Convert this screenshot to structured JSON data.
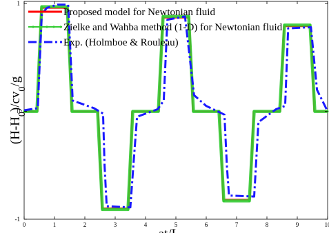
{
  "chart_data": {
    "type": "line",
    "title": "",
    "xlabel": "at/L",
    "ylabel": "(H-H0)/cv0/g",
    "xlim": [
      0,
      10
    ],
    "ylim": [
      -1,
      1.02
    ],
    "x_ticks": [
      "0",
      "1",
      "2",
      "3",
      "4",
      "5",
      "6",
      "7",
      "8",
      "9",
      "10"
    ],
    "y_ticks": [
      "1",
      "0",
      "-1"
    ],
    "y_tick_values": [
      1,
      0,
      -1
    ],
    "grid": false,
    "legend_position": "top-left",
    "series": [
      {
        "name": "Proposed model for Newtonian fluid",
        "color": "#ff0000",
        "style": "solid",
        "points": [
          [
            0,
            0
          ],
          [
            0.44,
            0
          ],
          [
            0.5,
            0.5
          ],
          [
            0.56,
            0.96
          ],
          [
            1.44,
            0.96
          ],
          [
            1.5,
            0.5
          ],
          [
            1.56,
            0
          ],
          [
            2.44,
            0
          ],
          [
            2.5,
            -0.45
          ],
          [
            2.56,
            -0.9
          ],
          [
            3.44,
            -0.9
          ],
          [
            3.5,
            -0.45
          ],
          [
            3.56,
            0
          ],
          [
            4.44,
            0
          ],
          [
            4.5,
            0.45
          ],
          [
            4.56,
            0.87
          ],
          [
            5.44,
            0.87
          ],
          [
            5.5,
            0.45
          ],
          [
            5.56,
            0
          ],
          [
            6.44,
            0
          ],
          [
            6.5,
            -0.4
          ],
          [
            6.56,
            -0.82
          ],
          [
            7.44,
            -0.82
          ],
          [
            7.5,
            -0.4
          ],
          [
            7.56,
            0
          ],
          [
            8.44,
            0
          ],
          [
            8.5,
            0.4
          ],
          [
            8.56,
            0.79
          ],
          [
            9.44,
            0.79
          ],
          [
            9.5,
            0.4
          ],
          [
            9.56,
            0
          ],
          [
            10,
            0
          ]
        ]
      },
      {
        "name": "Zielke and Wahba method (1-D) for Newtonian fluid",
        "color": "#33cc33",
        "style": "solid-markers",
        "points": [
          [
            0,
            0
          ],
          [
            0.42,
            0
          ],
          [
            0.5,
            0.5
          ],
          [
            0.58,
            0.97
          ],
          [
            1.42,
            0.97
          ],
          [
            1.5,
            0.5
          ],
          [
            1.58,
            0
          ],
          [
            2.42,
            0
          ],
          [
            2.5,
            -0.45
          ],
          [
            2.58,
            -0.91
          ],
          [
            3.42,
            -0.91
          ],
          [
            3.5,
            -0.45
          ],
          [
            3.58,
            0
          ],
          [
            4.42,
            0
          ],
          [
            4.5,
            0.45
          ],
          [
            4.58,
            0.88
          ],
          [
            5.42,
            0.88
          ],
          [
            5.5,
            0.45
          ],
          [
            5.58,
            0
          ],
          [
            6.42,
            0
          ],
          [
            6.5,
            -0.41
          ],
          [
            6.58,
            -0.83
          ],
          [
            7.42,
            -0.83
          ],
          [
            7.5,
            -0.41
          ],
          [
            7.58,
            0
          ],
          [
            8.42,
            0
          ],
          [
            8.5,
            0.4
          ],
          [
            8.58,
            0.8
          ],
          [
            9.42,
            0.8
          ],
          [
            9.5,
            0.4
          ],
          [
            9.58,
            0
          ],
          [
            10,
            0
          ]
        ]
      },
      {
        "name": "Exp. (Holmboe & Rouleau)",
        "color": "#1a1aff",
        "style": "dash-dot",
        "points": [
          [
            0,
            0.01
          ],
          [
            0.45,
            0.03
          ],
          [
            0.52,
            0.5
          ],
          [
            0.58,
            0.9
          ],
          [
            0.75,
            0.96
          ],
          [
            1.1,
            0.99
          ],
          [
            1.45,
            0.99
          ],
          [
            1.5,
            0.7
          ],
          [
            1.6,
            0.1
          ],
          [
            1.9,
            0.07
          ],
          [
            2.3,
            0.03
          ],
          [
            2.6,
            -0.02
          ],
          [
            2.65,
            -0.5
          ],
          [
            2.72,
            -0.88
          ],
          [
            3.5,
            -0.89
          ],
          [
            3.6,
            -0.5
          ],
          [
            3.72,
            -0.05
          ],
          [
            4.4,
            0.02
          ],
          [
            4.6,
            0.1
          ],
          [
            4.72,
            0.85
          ],
          [
            5.3,
            0.88
          ],
          [
            5.6,
            0.15
          ],
          [
            6.0,
            0.05
          ],
          [
            6.6,
            -0.03
          ],
          [
            6.68,
            -0.5
          ],
          [
            6.75,
            -0.78
          ],
          [
            7.58,
            -0.79
          ],
          [
            7.72,
            -0.1
          ],
          [
            8.3,
            0.02
          ],
          [
            8.6,
            0.05
          ],
          [
            8.7,
            0.77
          ],
          [
            9.45,
            0.78
          ],
          [
            9.65,
            0.2
          ],
          [
            10,
            0.0
          ]
        ]
      }
    ]
  }
}
